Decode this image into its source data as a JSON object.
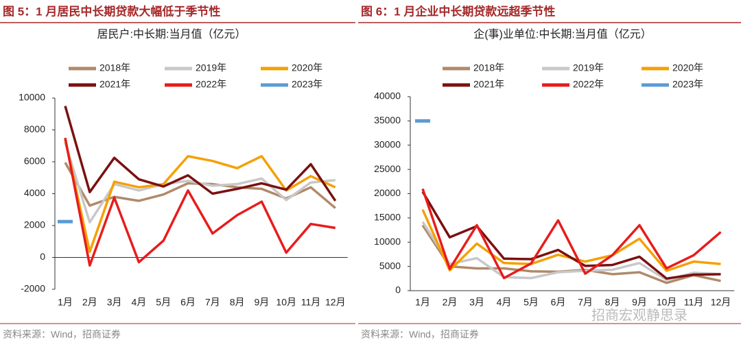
{
  "chart_data": [
    {
      "type": "line",
      "caption": "图 5：1 月居民中长期贷款大幅低于季节性",
      "title": "居民户:中长期:当月值（亿元）",
      "source": "资料来源：Wind，招商证券",
      "categories": [
        "1月",
        "2月",
        "3月",
        "4月",
        "5月",
        "6月",
        "7月",
        "8月",
        "9月",
        "10月",
        "11月",
        "12月"
      ],
      "ylim": [
        -2000,
        10000
      ],
      "yticks": [
        -2000,
        0,
        2000,
        4000,
        6000,
        8000,
        10000
      ],
      "series": [
        {
          "name": "2018年",
          "color": "#b08a6a",
          "values": [
            5950,
            3250,
            3800,
            3550,
            3950,
            4650,
            4600,
            4400,
            4300,
            3700,
            4400,
            3100
          ]
        },
        {
          "name": "2019年",
          "color": "#c8c8c8",
          "values": [
            7200,
            2200,
            4600,
            4200,
            4600,
            4800,
            4500,
            4600,
            4950,
            3600,
            4700,
            4850
          ]
        },
        {
          "name": "2020年",
          "color": "#f5a000",
          "values": [
            7400,
            350,
            4750,
            4400,
            4600,
            6350,
            6050,
            5600,
            6350,
            4200,
            5100,
            4400
          ]
        },
        {
          "name": "2021年",
          "color": "#7b1010",
          "values": [
            9500,
            4100,
            6250,
            4900,
            4450,
            5150,
            4000,
            4300,
            4650,
            4250,
            5850,
            3550
          ]
        },
        {
          "name": "2022年",
          "color": "#e81c1c",
          "values": [
            7500,
            -500,
            3750,
            -300,
            1050,
            4200,
            1500,
            2650,
            3500,
            300,
            2100,
            1850
          ]
        },
        {
          "name": "2023年",
          "color": "#5b9bd5",
          "values": [
            2250,
            null,
            null,
            null,
            null,
            null,
            null,
            null,
            null,
            null,
            null,
            null
          ]
        }
      ]
    },
    {
      "type": "line",
      "caption": "图 6：1 月企业中长期贷款远超季节性",
      "title": "企(事)业单位:中长期:当月值（亿元）",
      "source": "资料来源：Wind，招商证券",
      "categories": [
        "1月",
        "2月",
        "3月",
        "4月",
        "5月",
        "6月",
        "7月",
        "8月",
        "9月",
        "10月",
        "11月",
        "12月"
      ],
      "ylim": [
        0,
        40000
      ],
      "yticks": [
        0,
        5000,
        10000,
        15000,
        20000,
        25000,
        30000,
        35000,
        40000
      ],
      "series": [
        {
          "name": "2018年",
          "color": "#b08a6a",
          "values": [
            13500,
            5000,
            4600,
            4600,
            4000,
            3900,
            4300,
            3400,
            3800,
            1600,
            3200,
            2000
          ]
        },
        {
          "name": "2019年",
          "color": "#c8c8c8",
          "values": [
            14200,
            5500,
            6700,
            2800,
            2600,
            3800,
            4100,
            4300,
            5700,
            2200,
            3700,
            3400
          ]
        },
        {
          "name": "2020年",
          "color": "#f5a000",
          "values": [
            16700,
            4200,
            9700,
            5700,
            5500,
            7400,
            6000,
            7300,
            10700,
            4100,
            6000,
            5500
          ]
        },
        {
          "name": "2021年",
          "color": "#7b1010",
          "values": [
            20400,
            11000,
            13300,
            6600,
            6500,
            8400,
            5100,
            5300,
            7000,
            2500,
            3300,
            3400
          ]
        },
        {
          "name": "2022年",
          "color": "#e81c1c",
          "values": [
            21000,
            4500,
            13500,
            2600,
            5600,
            14500,
            3500,
            7300,
            13500,
            4600,
            7300,
            12100
          ]
        },
        {
          "name": "2023年",
          "color": "#5b9bd5",
          "values": [
            35000,
            null,
            null,
            null,
            null,
            null,
            null,
            null,
            null,
            null,
            null,
            null
          ]
        }
      ]
    }
  ],
  "watermark": "招商宏观静思录"
}
